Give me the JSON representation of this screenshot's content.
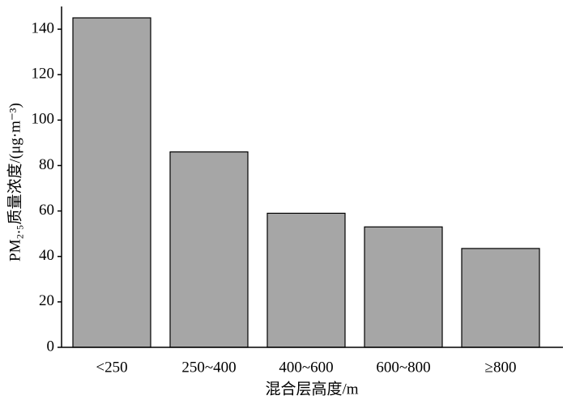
{
  "chart_data": {
    "type": "bar",
    "x_label": "混合层高度/m",
    "y_label": "PM₂.₅质量浓度/(μg·m⁻³)",
    "categories": [
      "<250",
      "250~400",
      "400~600",
      "600~800",
      "≥800"
    ],
    "values": [
      145,
      86,
      59,
      53,
      43.5
    ],
    "color": "#a6a6a6",
    "ylim": [
      0,
      150
    ],
    "yticks": [
      0,
      20,
      40,
      60,
      80,
      100,
      120,
      140
    ],
    "grid": false
  }
}
